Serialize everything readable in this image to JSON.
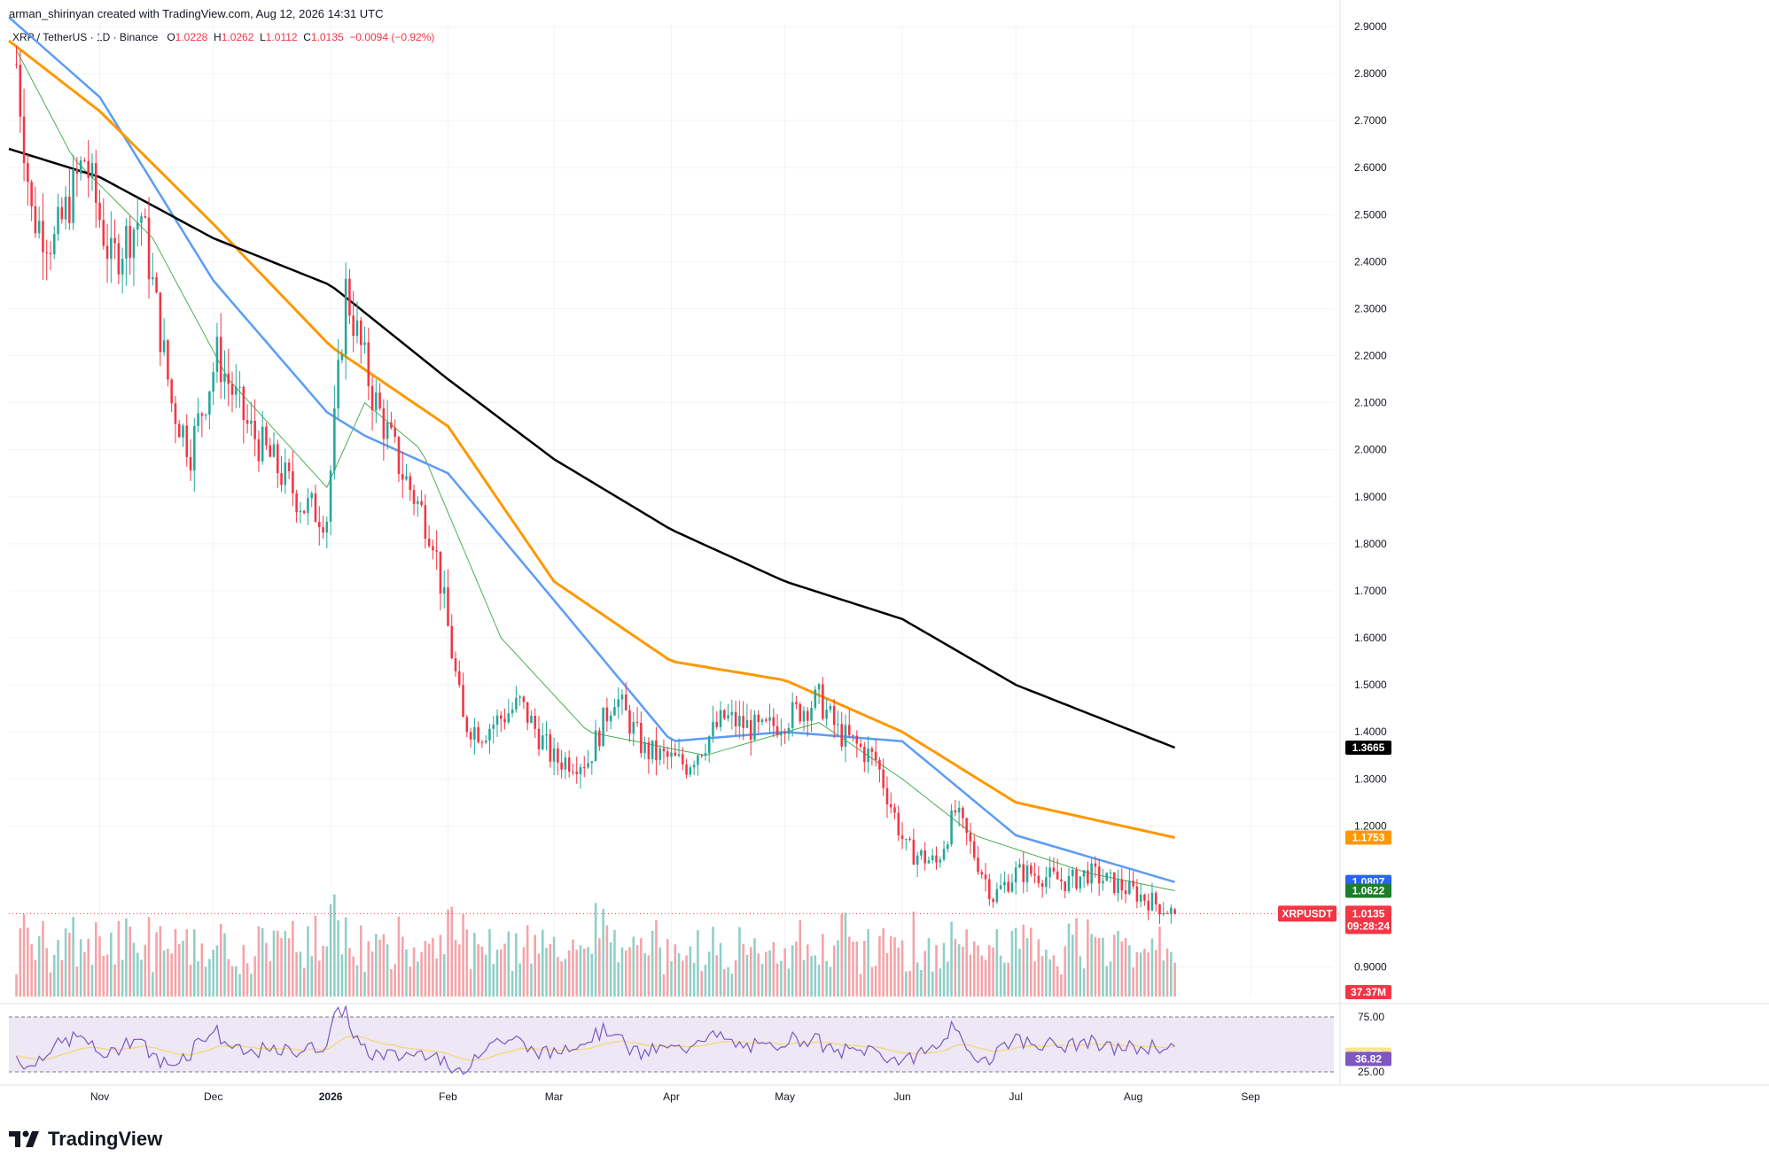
{
  "header": {
    "text": "arman_shirinyan created with TradingView.com, Aug 12, 2026 14:31 UTC"
  },
  "legend": {
    "symbol": "XRP / TetherUS · 1D · Binance",
    "open_label": "O",
    "open": "1.0228",
    "high_label": "H",
    "high": "1.0262",
    "low_label": "L",
    "low": "1.0112",
    "close_label": "C",
    "close": "1.0135",
    "change": "−0.0094 (−0.92%)"
  },
  "brand": {
    "name": "TradingView"
  },
  "colors": {
    "up": "#26a69a",
    "down": "#f23645",
    "up_volume": "#8fcfc6",
    "down_volume": "#f5a3a8",
    "ma20": "#4caf50",
    "ma50": "#5b9cf6",
    "ma100": "#ff9800",
    "ma200": "#000000",
    "rsi": "#7e57c2",
    "rsi_ma": "#f5d76e",
    "rsi_band": "#ede7f6"
  },
  "chart_data": {
    "type": "candlestick",
    "symbol": "XRPUSDT",
    "timeframe": "1D",
    "y_axis_ticks": [
      "2.9000",
      "2.8000",
      "2.7000",
      "2.6000",
      "2.5000",
      "2.4000",
      "2.3000",
      "2.2000",
      "2.1000",
      "2.0000",
      "1.9000",
      "1.8000",
      "1.7000",
      "1.6000",
      "1.5000",
      "1.4000",
      "1.3000",
      "1.2000",
      "0.9000"
    ],
    "ylim": [
      0.85,
      2.92
    ],
    "x_axis_ticks": [
      "Nov",
      "Dec",
      "2026",
      "Feb",
      "Mar",
      "Apr",
      "May",
      "Jun",
      "Jul",
      "Aug",
      "Sep"
    ],
    "price_anchors": [
      {
        "date": "2025-10-10",
        "close": 2.82
      },
      {
        "date": "2025-10-14",
        "close": 2.5
      },
      {
        "date": "2025-10-20",
        "close": 2.44
      },
      {
        "date": "2025-10-28",
        "close": 2.62
      },
      {
        "date": "2025-11-04",
        "close": 2.4
      },
      {
        "date": "2025-11-12",
        "close": 2.5
      },
      {
        "date": "2025-11-20",
        "close": 2.1
      },
      {
        "date": "2025-11-25",
        "close": 2.0
      },
      {
        "date": "2025-12-02",
        "close": 2.2
      },
      {
        "date": "2025-12-10",
        "close": 2.05
      },
      {
        "date": "2025-12-18",
        "close": 1.96
      },
      {
        "date": "2025-12-25",
        "close": 1.88
      },
      {
        "date": "2025-12-31",
        "close": 1.86
      },
      {
        "date": "2026-01-05",
        "close": 2.34
      },
      {
        "date": "2026-01-12",
        "close": 2.12
      },
      {
        "date": "2026-01-20",
        "close": 1.95
      },
      {
        "date": "2026-01-28",
        "close": 1.82
      },
      {
        "date": "2026-02-01",
        "close": 1.62
      },
      {
        "date": "2026-02-05",
        "close": 1.42
      },
      {
        "date": "2026-02-10",
        "close": 1.4
      },
      {
        "date": "2026-02-20",
        "close": 1.46
      },
      {
        "date": "2026-03-01",
        "close": 1.34
      },
      {
        "date": "2026-03-10",
        "close": 1.34
      },
      {
        "date": "2026-03-17",
        "close": 1.48
      },
      {
        "date": "2026-03-25",
        "close": 1.36
      },
      {
        "date": "2026-04-05",
        "close": 1.33
      },
      {
        "date": "2026-04-15",
        "close": 1.43
      },
      {
        "date": "2026-04-25",
        "close": 1.4
      },
      {
        "date": "2026-05-10",
        "close": 1.47
      },
      {
        "date": "2026-05-15",
        "close": 1.4
      },
      {
        "date": "2026-05-25",
        "close": 1.34
      },
      {
        "date": "2026-06-02",
        "close": 1.15
      },
      {
        "date": "2026-06-10",
        "close": 1.12
      },
      {
        "date": "2026-06-15",
        "close": 1.23
      },
      {
        "date": "2026-06-25",
        "close": 1.05
      },
      {
        "date": "2026-07-01",
        "close": 1.1
      },
      {
        "date": "2026-07-05",
        "close": 1.1
      },
      {
        "date": "2026-07-15",
        "close": 1.08
      },
      {
        "date": "2026-07-20",
        "close": 1.1
      },
      {
        "date": "2026-08-01",
        "close": 1.06
      },
      {
        "date": "2026-08-12",
        "close": 1.0135
      }
    ],
    "moving_averages": [
      {
        "name": "MA20",
        "value": "1.0622",
        "color": "#4caf50",
        "points": [
          {
            "date": "2025-10-10",
            "value": 2.85
          },
          {
            "date": "2025-10-25",
            "value": 2.62
          },
          {
            "date": "2025-11-15",
            "value": 2.45
          },
          {
            "date": "2025-12-05",
            "value": 2.15
          },
          {
            "date": "2025-12-31",
            "value": 1.92
          },
          {
            "date": "2026-01-10",
            "value": 2.1
          },
          {
            "date": "2026-01-25",
            "value": 2.0
          },
          {
            "date": "2026-02-15",
            "value": 1.6
          },
          {
            "date": "2026-03-10",
            "value": 1.4
          },
          {
            "date": "2026-04-10",
            "value": 1.35
          },
          {
            "date": "2026-05-10",
            "value": 1.42
          },
          {
            "date": "2026-06-01",
            "value": 1.3
          },
          {
            "date": "2026-06-20",
            "value": 1.18
          },
          {
            "date": "2026-07-20",
            "value": 1.1
          },
          {
            "date": "2026-08-12",
            "value": 1.0622
          }
        ]
      },
      {
        "name": "MA50",
        "value": "1.0807",
        "color": "#5b9cf6",
        "points": [
          {
            "date": "2025-10-08",
            "value": 2.92
          },
          {
            "date": "2025-11-01",
            "value": 2.75
          },
          {
            "date": "2025-12-01",
            "value": 2.36
          },
          {
            "date": "2025-12-31",
            "value": 2.08
          },
          {
            "date": "2026-01-10",
            "value": 2.03
          },
          {
            "date": "2026-02-01",
            "value": 1.95
          },
          {
            "date": "2026-03-01",
            "value": 1.68
          },
          {
            "date": "2026-04-01",
            "value": 1.38
          },
          {
            "date": "2026-05-01",
            "value": 1.4
          },
          {
            "date": "2026-06-01",
            "value": 1.38
          },
          {
            "date": "2026-07-01",
            "value": 1.18
          },
          {
            "date": "2026-08-12",
            "value": 1.0807
          }
        ]
      },
      {
        "name": "MA100",
        "value": "1.1753",
        "color": "#ff9800",
        "points": [
          {
            "date": "2025-10-08",
            "value": 2.87
          },
          {
            "date": "2025-11-01",
            "value": 2.72
          },
          {
            "date": "2025-12-01",
            "value": 2.48
          },
          {
            "date": "2026-01-01",
            "value": 2.22
          },
          {
            "date": "2026-02-01",
            "value": 2.05
          },
          {
            "date": "2026-03-01",
            "value": 1.72
          },
          {
            "date": "2026-04-01",
            "value": 1.55
          },
          {
            "date": "2026-05-01",
            "value": 1.51
          },
          {
            "date": "2026-06-01",
            "value": 1.4
          },
          {
            "date": "2026-07-01",
            "value": 1.25
          },
          {
            "date": "2026-08-12",
            "value": 1.1753
          }
        ]
      },
      {
        "name": "MA200",
        "value": "1.3665",
        "color": "#000000",
        "points": [
          {
            "date": "2025-10-08",
            "value": 2.64
          },
          {
            "date": "2025-11-01",
            "value": 2.58
          },
          {
            "date": "2025-12-01",
            "value": 2.45
          },
          {
            "date": "2026-01-01",
            "value": 2.35
          },
          {
            "date": "2026-02-01",
            "value": 2.15
          },
          {
            "date": "2026-03-01",
            "value": 1.98
          },
          {
            "date": "2026-04-01",
            "value": 1.83
          },
          {
            "date": "2026-05-01",
            "value": 1.72
          },
          {
            "date": "2026-06-01",
            "value": 1.64
          },
          {
            "date": "2026-07-01",
            "value": 1.5
          },
          {
            "date": "2026-08-12",
            "value": 1.3665
          }
        ]
      }
    ],
    "last_price": {
      "label": "XRPUSDT",
      "value": "1.0135",
      "countdown": "09:28:24"
    },
    "volume": {
      "last": "37.37M"
    },
    "rsi": {
      "upper": "75.00",
      "lower": "25.00",
      "value": "36.82",
      "ma_value": "40.77"
    }
  }
}
